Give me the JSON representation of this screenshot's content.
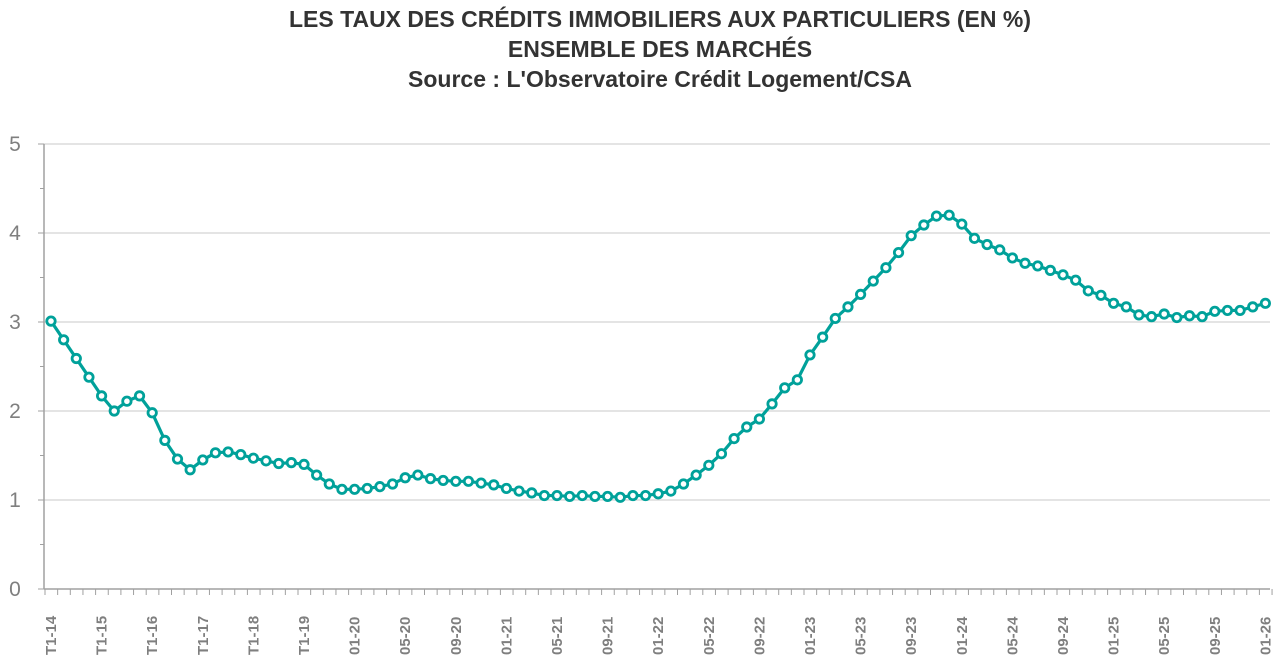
{
  "chart_data": {
    "type": "line",
    "title": [
      "LES TAUX DES CRÉDITS IMMOBILIERS AUX PARTICULIERS (EN %)",
      "ENSEMBLE DES MARCHÉS",
      "Source : L'Observatoire Crédit Logement/CSA"
    ],
    "xlabel": "",
    "ylabel": "",
    "ylim": [
      0,
      5
    ],
    "y_ticks": [
      "0",
      "1",
      "2",
      "3",
      "4",
      "5"
    ],
    "grid": true,
    "legend": "none",
    "x_tick_labels": [
      "T1-14",
      "T1-15",
      "T1-16",
      "T1-17",
      "T1-18",
      "T1-19",
      "01-20",
      "05-20",
      "09-20",
      "01-21",
      "05-21",
      "09-21",
      "01-22",
      "05-22",
      "09-22",
      "01-23",
      "05-23",
      "09-23",
      "01-24",
      "05-24",
      "09-24",
      "01-25",
      "05-25",
      "09-25",
      "01-26"
    ],
    "x_tick_every": 4,
    "series": [
      {
        "color": "#00a19a",
        "values": [
          3.01,
          2.8,
          2.59,
          2.38,
          2.17,
          2.0,
          2.11,
          2.17,
          1.98,
          1.67,
          1.46,
          1.34,
          1.45,
          1.53,
          1.54,
          1.51,
          1.47,
          1.44,
          1.41,
          1.42,
          1.4,
          1.28,
          1.18,
          1.12,
          1.12,
          1.13,
          1.15,
          1.18,
          1.25,
          1.28,
          1.24,
          1.22,
          1.21,
          1.21,
          1.19,
          1.17,
          1.13,
          1.1,
          1.08,
          1.05,
          1.05,
          1.04,
          1.05,
          1.04,
          1.04,
          1.03,
          1.05,
          1.05,
          1.07,
          1.1,
          1.18,
          1.28,
          1.39,
          1.52,
          1.69,
          1.82,
          1.91,
          2.08,
          2.26,
          2.35,
          2.63,
          2.83,
          3.04,
          3.17,
          3.31,
          3.46,
          3.61,
          3.78,
          3.97,
          4.09,
          4.19,
          4.2,
          4.1,
          3.94,
          3.87,
          3.81,
          3.72,
          3.66,
          3.63,
          3.58,
          3.53,
          3.47,
          3.35,
          3.3,
          3.21,
          3.17,
          3.08,
          3.06,
          3.09,
          3.05,
          3.07,
          3.06,
          3.12,
          3.13,
          3.13,
          3.17,
          3.21
        ]
      }
    ]
  }
}
